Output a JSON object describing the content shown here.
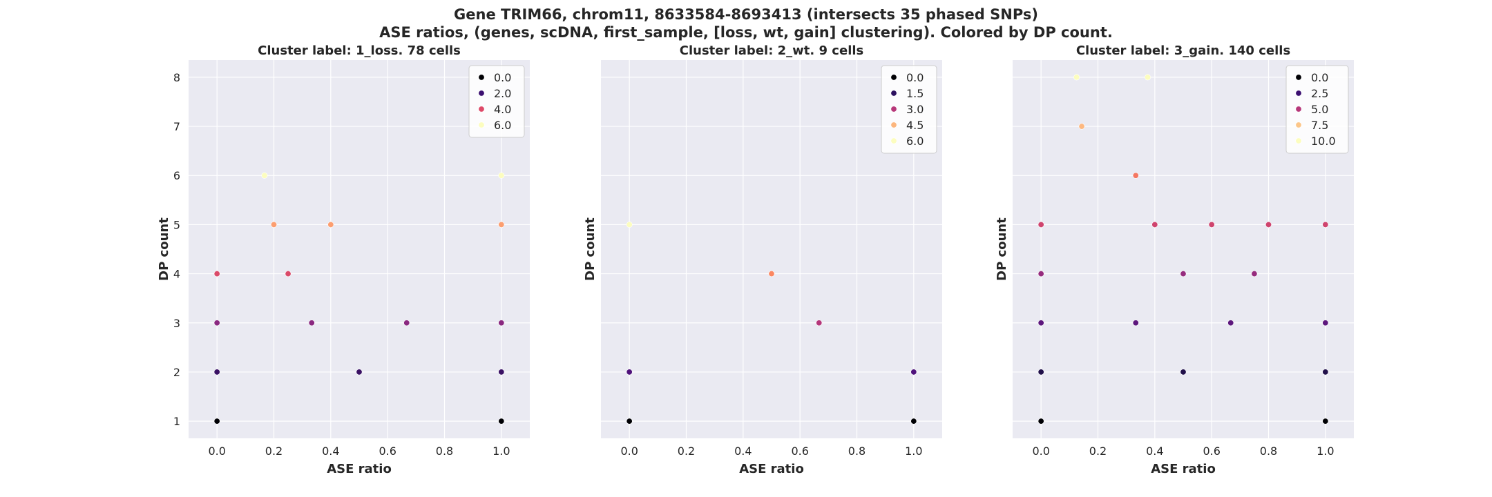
{
  "figure": {
    "title_line1": "Gene TRIM66, chrom11, 8633584-8693413 (intersects 35 phased SNPs)",
    "title_line2": "ASE ratios, (genes, scDNA, first_sample, [loss, wt, gain] clustering). Colored by DP count."
  },
  "chart_data": [
    {
      "type": "scatter",
      "title": "Cluster label: 1_loss. 78 cells",
      "xlabel": "ASE ratio",
      "ylabel": "DP count",
      "xlim": [
        -0.1,
        1.1
      ],
      "ylim": [
        0.65,
        8.35
      ],
      "xticks": [
        "0.0",
        "0.2",
        "0.4",
        "0.6",
        "0.8",
        "1.0"
      ],
      "yticks": [
        "1",
        "2",
        "3",
        "4",
        "5",
        "6",
        "7",
        "8"
      ],
      "show_yticks": true,
      "grid": true,
      "legend_placement": "top-right",
      "hue_max": 6,
      "legend": [
        {
          "label": "0.0",
          "color": "#000004"
        },
        {
          "label": "2.0",
          "color": "#3b0f70"
        },
        {
          "label": "4.0",
          "color": "#de4968"
        },
        {
          "label": "6.0",
          "color": "#fcfdbf"
        }
      ],
      "points": [
        {
          "x": 0.0,
          "y": 1
        },
        {
          "x": 1.0,
          "y": 1
        },
        {
          "x": 0.0,
          "y": 2
        },
        {
          "x": 0.5,
          "y": 2
        },
        {
          "x": 1.0,
          "y": 2
        },
        {
          "x": 0.0,
          "y": 3
        },
        {
          "x": 0.333,
          "y": 3
        },
        {
          "x": 0.667,
          "y": 3
        },
        {
          "x": 1.0,
          "y": 3
        },
        {
          "x": 0.0,
          "y": 4
        },
        {
          "x": 0.25,
          "y": 4
        },
        {
          "x": 0.2,
          "y": 5
        },
        {
          "x": 0.4,
          "y": 5
        },
        {
          "x": 1.0,
          "y": 5
        },
        {
          "x": 0.167,
          "y": 6
        },
        {
          "x": 1.0,
          "y": 6
        }
      ]
    },
    {
      "type": "scatter",
      "title": "Cluster label: 2_wt. 9 cells",
      "xlabel": "ASE ratio",
      "ylabel": "DP count",
      "xlim": [
        -0.1,
        1.1
      ],
      "ylim": [
        0.65,
        8.35
      ],
      "xticks": [
        "0.0",
        "0.2",
        "0.4",
        "0.6",
        "0.8",
        "1.0"
      ],
      "yticks": [],
      "show_yticks": false,
      "grid": true,
      "legend_placement": "top-right",
      "hue_max": 5,
      "legend": [
        {
          "label": "0.0",
          "color": "#000004"
        },
        {
          "label": "1.5",
          "color": "#2c115f"
        },
        {
          "label": "3.0",
          "color": "#b73779"
        },
        {
          "label": "4.5",
          "color": "#fcb67d"
        },
        {
          "label": "6.0",
          "color": "#fcfdbf"
        }
      ],
      "points": [
        {
          "x": 0.0,
          "y": 1
        },
        {
          "x": 1.0,
          "y": 1
        },
        {
          "x": 0.0,
          "y": 2
        },
        {
          "x": 1.0,
          "y": 2
        },
        {
          "x": 0.667,
          "y": 3
        },
        {
          "x": 0.5,
          "y": 4
        },
        {
          "x": 0.0,
          "y": 5
        }
      ]
    },
    {
      "type": "scatter",
      "title": "Cluster label: 3_gain. 140 cells",
      "xlabel": "ASE ratio",
      "ylabel": "DP count",
      "xlim": [
        -0.1,
        1.1
      ],
      "ylim": [
        0.65,
        8.35
      ],
      "xticks": [
        "0.0",
        "0.2",
        "0.4",
        "0.6",
        "0.8",
        "1.0"
      ],
      "yticks": [],
      "show_yticks": false,
      "grid": true,
      "legend_placement": "top-right",
      "hue_max": 8,
      "legend": [
        {
          "label": "0.0",
          "color": "#000004"
        },
        {
          "label": "2.5",
          "color": "#3b0f70"
        },
        {
          "label": "5.0",
          "color": "#b73779"
        },
        {
          "label": "7.5",
          "color": "#fcc689"
        },
        {
          "label": "10.0",
          "color": "#fcfdbf"
        }
      ],
      "points": [
        {
          "x": 0.0,
          "y": 1
        },
        {
          "x": 1.0,
          "y": 1
        },
        {
          "x": 0.0,
          "y": 2
        },
        {
          "x": 0.5,
          "y": 2
        },
        {
          "x": 1.0,
          "y": 2
        },
        {
          "x": 0.0,
          "y": 3
        },
        {
          "x": 0.333,
          "y": 3
        },
        {
          "x": 0.667,
          "y": 3
        },
        {
          "x": 1.0,
          "y": 3
        },
        {
          "x": 0.0,
          "y": 4
        },
        {
          "x": 0.5,
          "y": 4
        },
        {
          "x": 0.75,
          "y": 4
        },
        {
          "x": 0.0,
          "y": 5
        },
        {
          "x": 0.4,
          "y": 5
        },
        {
          "x": 0.6,
          "y": 5
        },
        {
          "x": 0.8,
          "y": 5
        },
        {
          "x": 1.0,
          "y": 5
        },
        {
          "x": 0.333,
          "y": 6
        },
        {
          "x": 0.143,
          "y": 7
        },
        {
          "x": 0.125,
          "y": 8
        },
        {
          "x": 0.375,
          "y": 8
        }
      ]
    }
  ]
}
